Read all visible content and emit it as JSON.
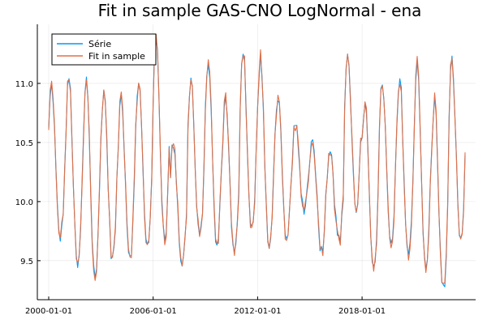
{
  "chart_data": {
    "type": "line",
    "title": "Fit in sample GAS-CNO LogNormal - ena",
    "xlabel": "",
    "ylabel": "",
    "x_range": [
      "2000-01-01",
      "2023-12-01"
    ],
    "ylim": [
      9.17,
      11.5
    ],
    "x_ticks": [
      {
        "label": "2000-01-01",
        "year": 2000
      },
      {
        "label": "2006-01-01",
        "year": 2006
      },
      {
        "label": "2012-01-01",
        "year": 2012
      },
      {
        "label": "2018-01-01",
        "year": 2018
      }
    ],
    "y_ticks": [
      9.5,
      10.0,
      10.5,
      11.0
    ],
    "y_tick_labels": [
      "9.5",
      "10.0",
      "10.5",
      "11.0"
    ],
    "grid": true,
    "legend_position": "top-left",
    "frequency": "monthly",
    "start_year": 2000,
    "annual_peaks": [
      10.98,
      11.05,
      11.03,
      10.95,
      10.9,
      11.03,
      11.38,
      10.5,
      11.05,
      11.2,
      10.88,
      11.3,
      11.22,
      10.9,
      10.65,
      10.55,
      10.48,
      11.25,
      10.8,
      11.02,
      11.03,
      11.18,
      10.85,
      11.2
    ],
    "annual_troughs": [
      9.7,
      9.45,
      9.38,
      9.52,
      9.55,
      9.62,
      9.72,
      9.48,
      9.7,
      9.62,
      9.55,
      9.75,
      9.6,
      9.65,
      9.95,
      9.6,
      9.68,
      9.95,
      9.48,
      9.62,
      9.55,
      9.42,
      9.25,
      9.68
    ],
    "series": [
      {
        "name": "Série",
        "color": "#009af9"
      },
      {
        "name": "Fit in sample",
        "color": "#e26f46"
      }
    ]
  }
}
